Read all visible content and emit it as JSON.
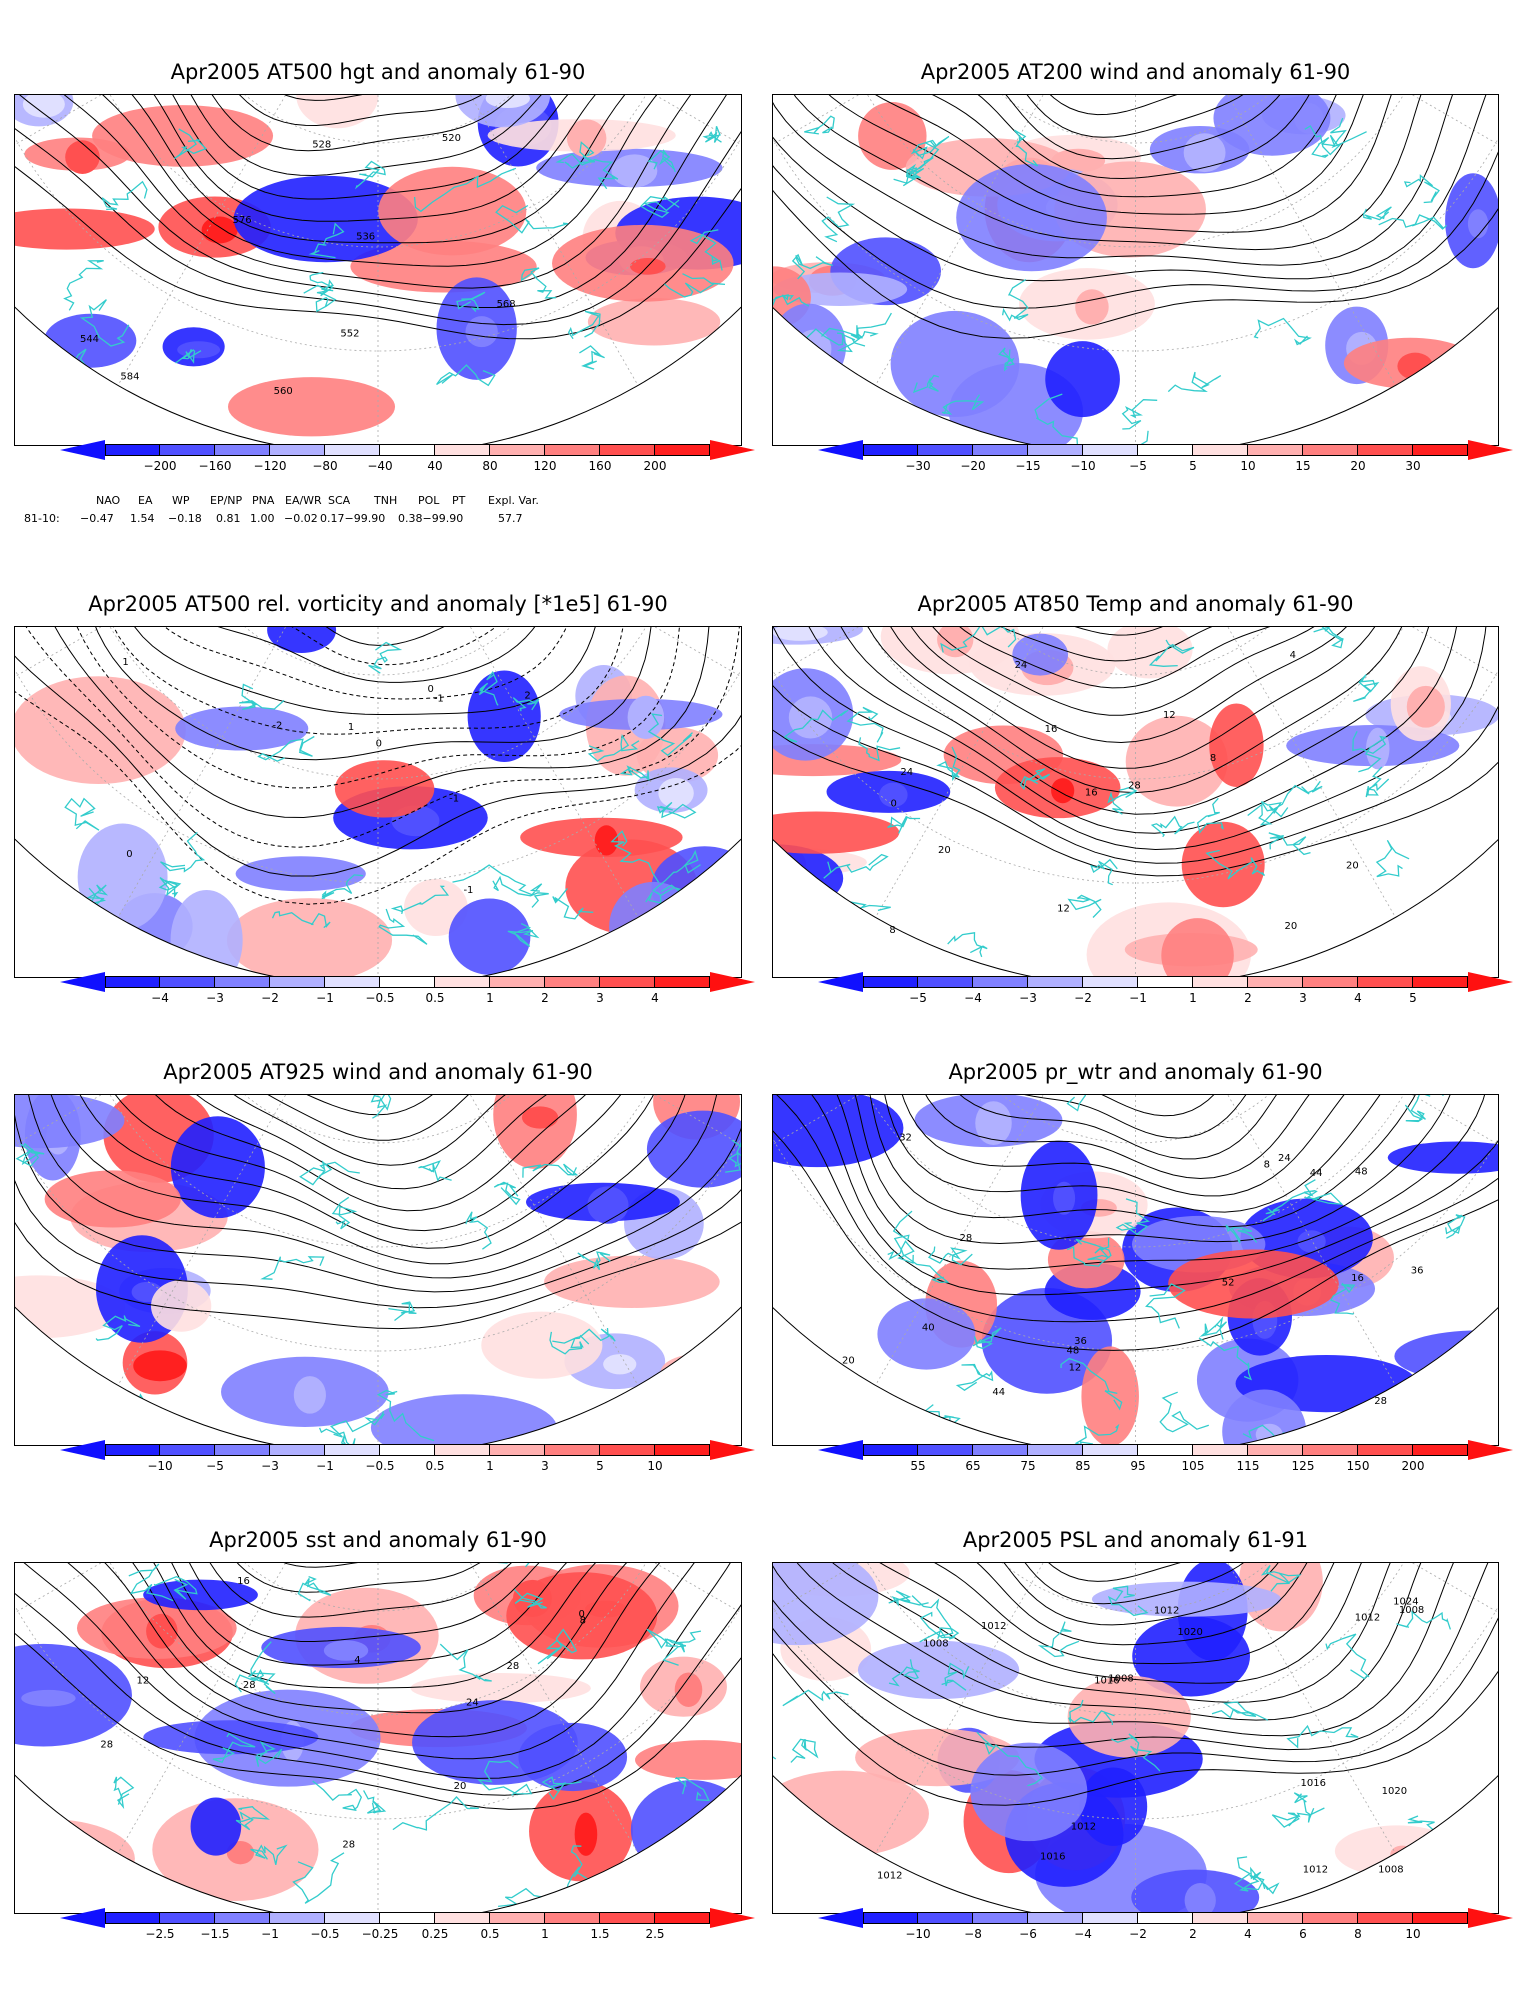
{
  "panels": [
    {
      "title": "Apr2005 AT500 hgt and anomaly 61-90",
      "ticks": [
        "−200",
        "−160",
        "−120",
        "−80",
        "−40",
        "40",
        "80",
        "120",
        "160",
        "200"
      ],
      "contour_labels": [
        "520",
        "528",
        "536",
        "544",
        "552",
        "560",
        "568",
        "576",
        "584"
      ]
    },
    {
      "title": "Apr2005 AT200 wind and anomaly 61-90",
      "ticks": [
        "−30",
        "−20",
        "−15",
        "−10",
        "−5",
        "5",
        "10",
        "15",
        "20",
        "30"
      ],
      "contour_labels": []
    },
    {
      "title": "Apr2005 AT500 rel. vorticity and anomaly [*1e5] 61-90",
      "ticks": [
        "−4",
        "−3",
        "−2",
        "−1",
        "−0.5",
        "0.5",
        "1",
        "2",
        "3",
        "4"
      ],
      "contour_labels": [
        "-1",
        "0",
        "1",
        "2",
        "-2",
        "0",
        "-1",
        "1",
        "0",
        "-1"
      ]
    },
    {
      "title": "Apr2005 AT850 Temp and anomaly 61-90",
      "ticks": [
        "−5",
        "−4",
        "−3",
        "−2",
        "−1",
        "1",
        "2",
        "3",
        "4",
        "5"
      ],
      "contour_labels": [
        "20",
        "16",
        "12",
        "8",
        "4",
        "0",
        "8",
        "12",
        "16",
        "20",
        "24",
        "28",
        "24",
        "20"
      ]
    },
    {
      "title": "Apr2005 AT925 wind and anomaly 61-90",
      "ticks": [
        "−10",
        "−5",
        "−3",
        "−1",
        "−0.5",
        "0.5",
        "1",
        "3",
        "5",
        "10"
      ],
      "contour_labels": []
    },
    {
      "title": "Apr2005 pr_wtr and anomaly 61-90",
      "ticks": [
        "55",
        "65",
        "75",
        "85",
        "95",
        "105",
        "115",
        "125",
        "150",
        "200"
      ],
      "contour_labels": [
        "28",
        "32",
        "36",
        "48",
        "52",
        "44",
        "20",
        "24",
        "16",
        "12",
        "8",
        "40",
        "48",
        "28",
        "36",
        "44"
      ]
    },
    {
      "title": "Apr2005 sst and anomaly 61-90",
      "ticks": [
        "−2.5",
        "−1.5",
        "−1",
        "−0.5",
        "−0.25",
        "0.25",
        "0.5",
        "1",
        "1.5",
        "2.5"
      ],
      "contour_labels": [
        "28",
        "28",
        "28",
        "16",
        "12",
        "8",
        "4",
        "0",
        "20",
        "24",
        "28"
      ]
    },
    {
      "title": "Apr2005 PSL and anomaly 61-91",
      "ticks": [
        "−10",
        "−8",
        "−6",
        "−4",
        "−2",
        "2",
        "4",
        "6",
        "8",
        "10"
      ],
      "contour_labels": [
        "1012",
        "1016",
        "1020",
        "1008",
        "1012",
        "1016",
        "1020",
        "1024",
        "1012",
        "1008",
        "1016",
        "1012",
        "1008",
        "1012",
        "1008",
        "1012"
      ]
    }
  ],
  "stats": {
    "headers": [
      "NAO",
      "EA",
      "WP",
      "EP/NP",
      "PNA",
      "EA/WR",
      "SCA",
      "TNH",
      "POL",
      "PT",
      "Expl. Var."
    ],
    "row_label": "81-10:",
    "values": [
      "−0.47",
      "1.54",
      "−0.18",
      "0.81",
      "1.00",
      "−0.02",
      "0.17−99.90",
      "0.38−99.90",
      "57.7"
    ]
  },
  "colors": {
    "coast": "#33cccc",
    "contour": "#000000",
    "neg": [
      "#2020ff",
      "#5050ff",
      "#8080ff",
      "#b0b0ff",
      "#e0e0ff"
    ],
    "pos": [
      "#ffe0e0",
      "#ffb0b0",
      "#ff8080",
      "#ff5050",
      "#ff2020"
    ]
  }
}
